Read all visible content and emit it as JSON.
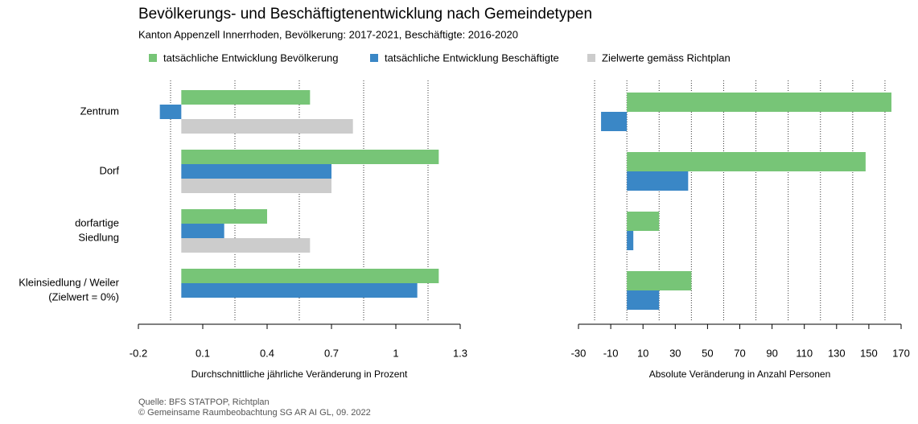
{
  "title": "Bevölkerungs- und Beschäftigtenentwicklung nach Gemeindetypen",
  "subtitle": "Kanton Appenzell Innerrhoden, Bevölkerung: 2017-2021, Beschäftigte: 2016-2020",
  "source": [
    "Quelle: BFS STATPOP, Richtplan",
    "© Gemeinsame Raumbeobachtung SG AR AI GL, 09. 2022"
  ],
  "categories": [
    [
      "Zentrum"
    ],
    [
      "Dorf"
    ],
    [
      "dorfartige",
      "Siedlung"
    ],
    [
      "Kleinsiedlung / Weiler",
      "(Zielwert = 0%)"
    ]
  ],
  "chart_data": [
    {
      "type": "hbar",
      "x_label": "Durchschnittliche jährliche Veränderung in Prozent",
      "xlim": [
        -0.2,
        1.3
      ],
      "xticks": [
        -0.2,
        0.1,
        0.4,
        0.7,
        1,
        1.3
      ],
      "xgrid": [
        -0.05,
        0.25,
        0.55,
        0.85,
        1.15
      ],
      "series": [
        {
          "name": "tatsächliche Entwicklung Bevölkerung",
          "color": "#77c577",
          "values": [
            0.6,
            1.2,
            0.4,
            1.2
          ]
        },
        {
          "name": "tatsächliche Entwicklung Beschäftigte",
          "color": "#3a87c6",
          "values": [
            -0.1,
            0.7,
            0.2,
            1.1
          ]
        },
        {
          "name": "Zielwerte gemäss Richtplan",
          "color": "#cccccc",
          "values": [
            0.8,
            0.7,
            0.6,
            0
          ]
        }
      ]
    },
    {
      "type": "hbar",
      "x_label": "Absolute Veränderung in Anzahl Personen",
      "xlim": [
        -30,
        170
      ],
      "xticks": [
        -30,
        -10,
        10,
        30,
        50,
        70,
        90,
        110,
        130,
        150,
        170
      ],
      "xgrid": [
        -20,
        0,
        20,
        40,
        60,
        80,
        100,
        120,
        140,
        160
      ],
      "series": [
        {
          "name": "tatsächliche Entwicklung Bevölkerung",
          "color": "#77c577",
          "values": [
            164,
            148,
            20,
            40
          ]
        },
        {
          "name": "tatsächliche Entwicklung Beschäftigte",
          "color": "#3a87c6",
          "values": [
            -16,
            38,
            4,
            20
          ]
        }
      ]
    }
  ]
}
